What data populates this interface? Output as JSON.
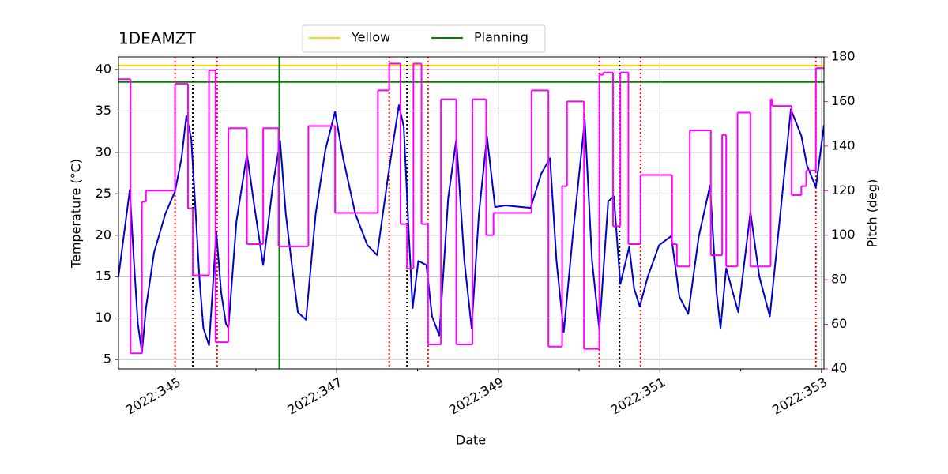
{
  "chart_data": {
    "type": "line",
    "title": "1DEAMZT",
    "x_label": "Date",
    "y_label": "Temperature (°C)",
    "y2_label": "Pitch (deg)",
    "y2_color": "#ff00ff",
    "grid": true,
    "legend": "upper center",
    "xlim": [
      344.3,
      353.03
    ],
    "xticks": [
      {
        "value": 345,
        "label": "2022:345"
      },
      {
        "value": 347,
        "label": "2022:347"
      },
      {
        "value": 349,
        "label": "2022:349"
      },
      {
        "value": 351,
        "label": "2022:351"
      },
      {
        "value": 353,
        "label": "2022:353"
      }
    ],
    "xminorticks": [
      346,
      348,
      350,
      352
    ],
    "ylim": [
      3.86,
      41.53
    ],
    "yticks": [
      5,
      10,
      15,
      20,
      25,
      30,
      35,
      40
    ],
    "y2lim": [
      40,
      180
    ],
    "y2ticks": [
      40,
      60,
      80,
      100,
      120,
      140,
      160,
      180
    ],
    "hlines": [
      {
        "name": "Yellow",
        "value": 40.5,
        "color": "#ffd700"
      },
      {
        "name": "Planning",
        "value": 38.5,
        "color": "#008000"
      }
    ],
    "vlines": [
      {
        "x": 346.29,
        "color": "#008000",
        "style": "solid"
      },
      {
        "x": 345.0,
        "color": "#ff0000",
        "style": "dotted"
      },
      {
        "x": 345.52,
        "color": "#ff0000",
        "style": "dotted"
      },
      {
        "x": 347.65,
        "color": "#ff0000",
        "style": "dotted"
      },
      {
        "x": 348.13,
        "color": "#ff0000",
        "style": "dotted"
      },
      {
        "x": 350.25,
        "color": "#ff0000",
        "style": "dotted"
      },
      {
        "x": 350.76,
        "color": "#ff0000",
        "style": "dotted"
      },
      {
        "x": 352.93,
        "color": "#ff0000",
        "style": "dotted"
      },
      {
        "x": 345.22,
        "color": "#000000",
        "style": "dotted"
      },
      {
        "x": 347.87,
        "color": "#000000",
        "style": "dotted"
      },
      {
        "x": 350.5,
        "color": "#000000",
        "style": "dotted"
      }
    ],
    "series": [
      {
        "color": "#0000cc",
        "axis": "y",
        "x": [
          344.3,
          344.44,
          344.49,
          344.54,
          344.59,
          344.64,
          344.74,
          344.88,
          345.0,
          345.08,
          345.14,
          345.2,
          345.25,
          345.3,
          345.35,
          345.42,
          345.47,
          345.51,
          345.57,
          345.63,
          345.66,
          345.76,
          345.89,
          345.98,
          346.09,
          346.21,
          346.3,
          346.37,
          346.45,
          346.52,
          346.62,
          346.74,
          346.86,
          346.98,
          347.08,
          347.23,
          347.38,
          347.5,
          347.64,
          347.77,
          347.83,
          347.89,
          347.94,
          348.01,
          348.11,
          348.18,
          348.27,
          348.38,
          348.48,
          348.58,
          348.67,
          348.76,
          348.86,
          348.96,
          349.09,
          349.4,
          349.53,
          349.64,
          349.72,
          349.81,
          349.92,
          350.07,
          350.16,
          350.25,
          350.36,
          350.43,
          350.51,
          350.62,
          350.68,
          350.75,
          350.85,
          350.99,
          351.14,
          351.24,
          351.35,
          351.48,
          351.62,
          351.7,
          351.75,
          351.82,
          351.97,
          352.12,
          352.23,
          352.36,
          352.49,
          352.62,
          352.75,
          352.82,
          352.93,
          353.03
        ],
        "values": [
          15.0,
          25.5,
          17.0,
          9.3,
          5.8,
          11.2,
          17.9,
          22.6,
          25.3,
          29.3,
          34.4,
          31.7,
          23.6,
          15.0,
          8.8,
          6.7,
          14.1,
          20.4,
          13.1,
          9.3,
          8.8,
          21.7,
          29.8,
          23.6,
          16.4,
          26.0,
          31.4,
          22.6,
          16.0,
          10.7,
          9.8,
          22.6,
          30.3,
          34.9,
          29.3,
          22.6,
          18.8,
          17.6,
          27.4,
          35.7,
          33.1,
          20.7,
          11.2,
          16.9,
          16.4,
          10.2,
          7.9,
          24.5,
          31.6,
          16.9,
          8.8,
          22.6,
          31.9,
          23.4,
          23.6,
          23.3,
          27.4,
          29.3,
          16.9,
          8.3,
          19.8,
          33.9,
          16.9,
          8.6,
          24.1,
          24.7,
          14.1,
          18.6,
          13.6,
          11.4,
          15.0,
          18.8,
          19.9,
          12.6,
          10.5,
          19.8,
          26.0,
          13.1,
          8.8,
          16.0,
          10.7,
          22.8,
          15.0,
          10.2,
          22.6,
          35.2,
          32.0,
          28.4,
          25.8,
          33.3
        ]
      },
      {
        "color": "#ff00ff",
        "axis": "y2",
        "step": "post",
        "x": [
          344.3,
          344.45,
          344.59,
          344.64,
          345.0,
          345.16,
          345.22,
          345.42,
          345.5,
          345.66,
          345.89,
          346.09,
          346.28,
          346.65,
          346.98,
          347.51,
          347.65,
          347.79,
          347.87,
          347.95,
          348.05,
          348.13,
          348.29,
          348.48,
          348.68,
          348.85,
          348.94,
          349.41,
          349.62,
          349.79,
          349.85,
          350.06,
          350.25,
          350.3,
          350.42,
          350.51,
          350.61,
          350.76,
          351.15,
          351.21,
          351.37,
          351.63,
          351.77,
          351.82,
          351.96,
          352.12,
          352.37,
          352.39,
          352.63,
          352.75,
          352.81,
          352.93,
          353.03
        ],
        "values": [
          170,
          47,
          115,
          120,
          168,
          112,
          82,
          174,
          52,
          148,
          96,
          148,
          95,
          149,
          110,
          165,
          177,
          105,
          85,
          177,
          105,
          51,
          161,
          51,
          161,
          100,
          110,
          165,
          50,
          122,
          160,
          49,
          172,
          173,
          104,
          173,
          96,
          127,
          96,
          86,
          147,
          91,
          145,
          86,
          155,
          86,
          161,
          158,
          118,
          122,
          129,
          175,
          175
        ]
      }
    ]
  }
}
